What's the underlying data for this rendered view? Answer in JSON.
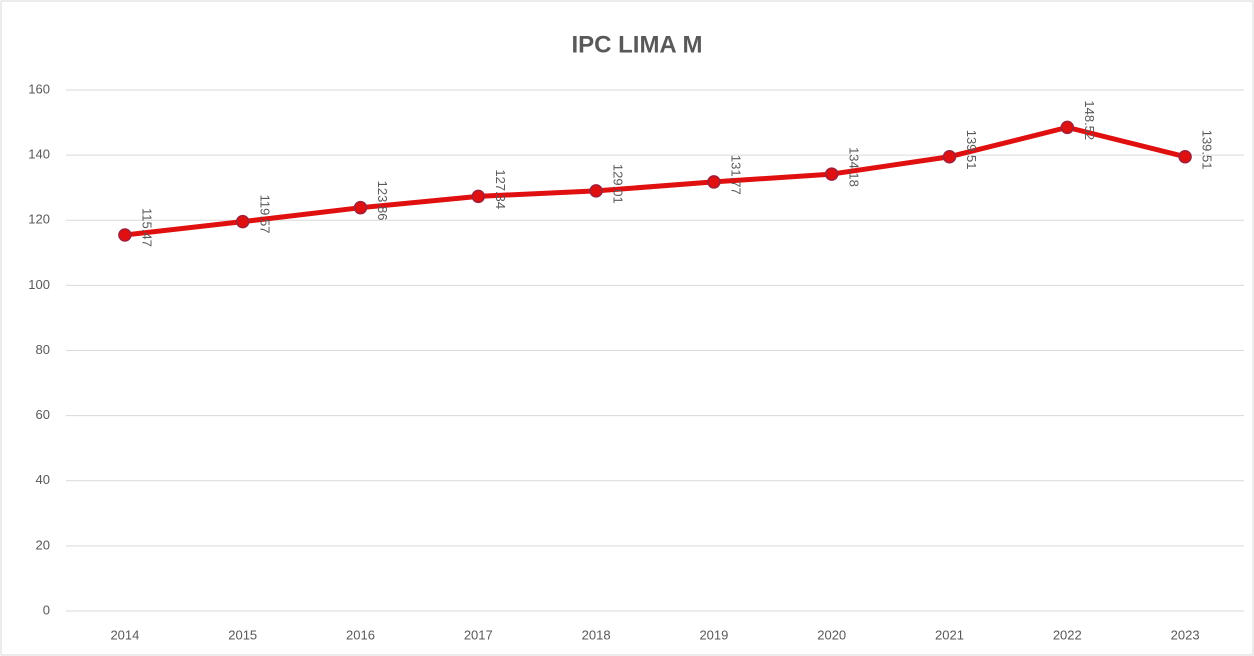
{
  "chart_data": {
    "type": "line",
    "title": "IPC LIMA M",
    "categories": [
      "2014",
      "2015",
      "2016",
      "2017",
      "2018",
      "2019",
      "2020",
      "2021",
      "2022",
      "2023"
    ],
    "series": [
      {
        "name": "IPC LIMA M",
        "color": "#e01010",
        "values": [
          115.47,
          119.57,
          123.86,
          127.34,
          129.01,
          131.77,
          134.18,
          139.51,
          148.52,
          139.51
        ]
      }
    ],
    "ylim": [
      0,
      160
    ],
    "yticks": [
      0,
      20,
      40,
      60,
      80,
      100,
      120,
      140,
      160
    ],
    "grid": true
  }
}
